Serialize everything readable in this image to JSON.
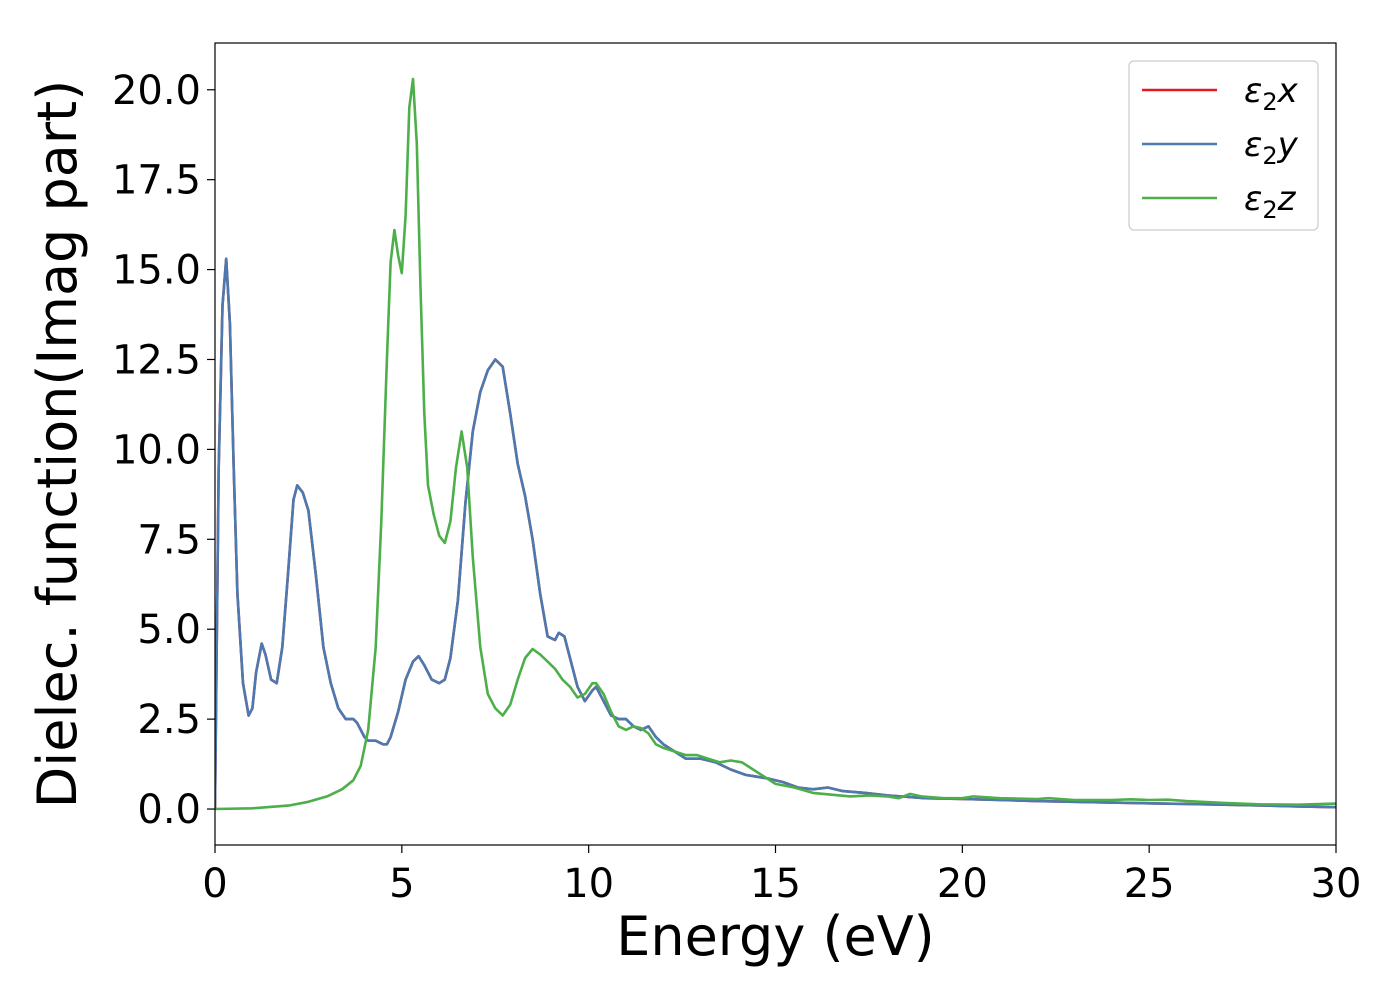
{
  "chart_data": {
    "type": "line",
    "title": "",
    "xlabel": "Energy (eV)",
    "ylabel": "Dielec. function(Imag part)",
    "xlim": [
      0,
      30
    ],
    "ylim": [
      -1.0,
      21.3
    ],
    "xticks": [
      0,
      5,
      10,
      15,
      20,
      25,
      30
    ],
    "yticks": [
      0.0,
      2.5,
      5.0,
      7.5,
      10.0,
      12.5,
      15.0,
      17.5,
      20.0
    ],
    "grid": false,
    "legend_position": "top-right",
    "series": [
      {
        "name": "ε₂x",
        "legend_base": "ε",
        "legend_sub": "2",
        "legend_suffix": "x",
        "color": "#e41a1c",
        "points": [
          [
            0,
            0
          ],
          [
            0.05,
            5
          ],
          [
            0.1,
            9.5
          ],
          [
            0.2,
            14.0
          ],
          [
            0.3,
            15.3
          ],
          [
            0.4,
            13.5
          ],
          [
            0.5,
            9.5
          ],
          [
            0.6,
            6.0
          ],
          [
            0.75,
            3.5
          ],
          [
            0.9,
            2.6
          ],
          [
            1.0,
            2.8
          ],
          [
            1.1,
            3.8
          ],
          [
            1.25,
            4.6
          ],
          [
            1.35,
            4.3
          ],
          [
            1.5,
            3.6
          ],
          [
            1.65,
            3.5
          ],
          [
            1.8,
            4.5
          ],
          [
            1.95,
            6.5
          ],
          [
            2.1,
            8.6
          ],
          [
            2.2,
            9.0
          ],
          [
            2.35,
            8.8
          ],
          [
            2.5,
            8.3
          ],
          [
            2.7,
            6.5
          ],
          [
            2.9,
            4.5
          ],
          [
            3.1,
            3.5
          ],
          [
            3.3,
            2.8
          ],
          [
            3.5,
            2.5
          ],
          [
            3.7,
            2.5
          ],
          [
            3.8,
            2.4
          ],
          [
            4.0,
            2.0
          ],
          [
            4.1,
            1.9
          ],
          [
            4.3,
            1.9
          ],
          [
            4.5,
            1.8
          ],
          [
            4.6,
            1.8
          ],
          [
            4.7,
            2.0
          ],
          [
            4.9,
            2.7
          ],
          [
            5.1,
            3.6
          ],
          [
            5.3,
            4.1
          ],
          [
            5.45,
            4.25
          ],
          [
            5.6,
            4.0
          ],
          [
            5.8,
            3.6
          ],
          [
            6.0,
            3.5
          ],
          [
            6.15,
            3.6
          ],
          [
            6.3,
            4.2
          ],
          [
            6.5,
            5.8
          ],
          [
            6.7,
            8.5
          ],
          [
            6.9,
            10.5
          ],
          [
            7.1,
            11.6
          ],
          [
            7.3,
            12.2
          ],
          [
            7.5,
            12.5
          ],
          [
            7.7,
            12.3
          ],
          [
            7.9,
            11.0
          ],
          [
            8.1,
            9.6
          ],
          [
            8.3,
            8.7
          ],
          [
            8.5,
            7.5
          ],
          [
            8.7,
            6.0
          ],
          [
            8.9,
            4.8
          ],
          [
            9.1,
            4.7
          ],
          [
            9.2,
            4.9
          ],
          [
            9.35,
            4.8
          ],
          [
            9.5,
            4.2
          ],
          [
            9.7,
            3.4
          ],
          [
            9.9,
            3.0
          ],
          [
            10.1,
            3.3
          ],
          [
            10.2,
            3.4
          ],
          [
            10.4,
            3.0
          ],
          [
            10.6,
            2.6
          ],
          [
            10.8,
            2.5
          ],
          [
            11.0,
            2.5
          ],
          [
            11.2,
            2.3
          ],
          [
            11.4,
            2.2
          ],
          [
            11.6,
            2.3
          ],
          [
            11.8,
            2.0
          ],
          [
            12.0,
            1.8
          ],
          [
            12.3,
            1.6
          ],
          [
            12.6,
            1.4
          ],
          [
            13.0,
            1.4
          ],
          [
            13.4,
            1.3
          ],
          [
            13.8,
            1.1
          ],
          [
            14.2,
            0.95
          ],
          [
            14.5,
            0.9
          ],
          [
            14.8,
            0.85
          ],
          [
            15.2,
            0.75
          ],
          [
            15.6,
            0.6
          ],
          [
            16.0,
            0.55
          ],
          [
            16.4,
            0.6
          ],
          [
            16.8,
            0.5
          ],
          [
            17.4,
            0.45
          ],
          [
            18.0,
            0.38
          ],
          [
            19.0,
            0.3
          ],
          [
            20.0,
            0.28
          ],
          [
            21.0,
            0.25
          ],
          [
            22.0,
            0.22
          ],
          [
            23.0,
            0.2
          ],
          [
            24.0,
            0.18
          ],
          [
            25.0,
            0.16
          ],
          [
            26.0,
            0.14
          ],
          [
            27.0,
            0.12
          ],
          [
            28.0,
            0.1
          ],
          [
            29.0,
            0.07
          ],
          [
            30.0,
            0.05
          ]
        ]
      },
      {
        "name": "ε₂y",
        "legend_base": "ε",
        "legend_sub": "2",
        "legend_suffix": "y",
        "color": "#4a7ab0",
        "points": [
          [
            0,
            0
          ],
          [
            0.05,
            5
          ],
          [
            0.1,
            9.5
          ],
          [
            0.2,
            14.0
          ],
          [
            0.3,
            15.3
          ],
          [
            0.4,
            13.5
          ],
          [
            0.5,
            9.5
          ],
          [
            0.6,
            6.0
          ],
          [
            0.75,
            3.5
          ],
          [
            0.9,
            2.6
          ],
          [
            1.0,
            2.8
          ],
          [
            1.1,
            3.8
          ],
          [
            1.25,
            4.6
          ],
          [
            1.35,
            4.3
          ],
          [
            1.5,
            3.6
          ],
          [
            1.65,
            3.5
          ],
          [
            1.8,
            4.5
          ],
          [
            1.95,
            6.5
          ],
          [
            2.1,
            8.6
          ],
          [
            2.2,
            9.0
          ],
          [
            2.35,
            8.8
          ],
          [
            2.5,
            8.3
          ],
          [
            2.7,
            6.5
          ],
          [
            2.9,
            4.5
          ],
          [
            3.1,
            3.5
          ],
          [
            3.3,
            2.8
          ],
          [
            3.5,
            2.5
          ],
          [
            3.7,
            2.5
          ],
          [
            3.8,
            2.4
          ],
          [
            4.0,
            2.0
          ],
          [
            4.1,
            1.9
          ],
          [
            4.3,
            1.9
          ],
          [
            4.5,
            1.8
          ],
          [
            4.6,
            1.8
          ],
          [
            4.7,
            2.0
          ],
          [
            4.9,
            2.7
          ],
          [
            5.1,
            3.6
          ],
          [
            5.3,
            4.1
          ],
          [
            5.45,
            4.25
          ],
          [
            5.6,
            4.0
          ],
          [
            5.8,
            3.6
          ],
          [
            6.0,
            3.5
          ],
          [
            6.15,
            3.6
          ],
          [
            6.3,
            4.2
          ],
          [
            6.5,
            5.8
          ],
          [
            6.7,
            8.5
          ],
          [
            6.9,
            10.5
          ],
          [
            7.1,
            11.6
          ],
          [
            7.3,
            12.2
          ],
          [
            7.5,
            12.5
          ],
          [
            7.7,
            12.3
          ],
          [
            7.9,
            11.0
          ],
          [
            8.1,
            9.6
          ],
          [
            8.3,
            8.7
          ],
          [
            8.5,
            7.5
          ],
          [
            8.7,
            6.0
          ],
          [
            8.9,
            4.8
          ],
          [
            9.1,
            4.7
          ],
          [
            9.2,
            4.9
          ],
          [
            9.35,
            4.8
          ],
          [
            9.5,
            4.2
          ],
          [
            9.7,
            3.4
          ],
          [
            9.9,
            3.0
          ],
          [
            10.1,
            3.3
          ],
          [
            10.2,
            3.4
          ],
          [
            10.4,
            3.0
          ],
          [
            10.6,
            2.6
          ],
          [
            10.8,
            2.5
          ],
          [
            11.0,
            2.5
          ],
          [
            11.2,
            2.3
          ],
          [
            11.4,
            2.2
          ],
          [
            11.6,
            2.3
          ],
          [
            11.8,
            2.0
          ],
          [
            12.0,
            1.8
          ],
          [
            12.3,
            1.6
          ],
          [
            12.6,
            1.4
          ],
          [
            13.0,
            1.4
          ],
          [
            13.4,
            1.3
          ],
          [
            13.8,
            1.1
          ],
          [
            14.2,
            0.95
          ],
          [
            14.5,
            0.9
          ],
          [
            14.8,
            0.85
          ],
          [
            15.2,
            0.75
          ],
          [
            15.6,
            0.6
          ],
          [
            16.0,
            0.55
          ],
          [
            16.4,
            0.6
          ],
          [
            16.8,
            0.5
          ],
          [
            17.4,
            0.45
          ],
          [
            18.0,
            0.38
          ],
          [
            19.0,
            0.3
          ],
          [
            20.0,
            0.28
          ],
          [
            21.0,
            0.25
          ],
          [
            22.0,
            0.22
          ],
          [
            23.0,
            0.2
          ],
          [
            24.0,
            0.18
          ],
          [
            25.0,
            0.16
          ],
          [
            26.0,
            0.14
          ],
          [
            27.0,
            0.12
          ],
          [
            28.0,
            0.1
          ],
          [
            29.0,
            0.07
          ],
          [
            30.0,
            0.05
          ]
        ]
      },
      {
        "name": "ε₂z",
        "legend_base": "ε",
        "legend_sub": "2",
        "legend_suffix": "z",
        "color": "#4daf4a",
        "points": [
          [
            0,
            0
          ],
          [
            1.0,
            0.02
          ],
          [
            2.0,
            0.1
          ],
          [
            2.5,
            0.2
          ],
          [
            3.0,
            0.35
          ],
          [
            3.4,
            0.55
          ],
          [
            3.7,
            0.8
          ],
          [
            3.9,
            1.2
          ],
          [
            4.1,
            2.2
          ],
          [
            4.3,
            4.5
          ],
          [
            4.45,
            8.0
          ],
          [
            4.6,
            12.5
          ],
          [
            4.7,
            15.2
          ],
          [
            4.8,
            16.1
          ],
          [
            4.9,
            15.4
          ],
          [
            5.0,
            14.9
          ],
          [
            5.1,
            16.5
          ],
          [
            5.2,
            19.5
          ],
          [
            5.3,
            20.3
          ],
          [
            5.4,
            18.5
          ],
          [
            5.5,
            14.5
          ],
          [
            5.6,
            11.0
          ],
          [
            5.7,
            9.0
          ],
          [
            5.85,
            8.2
          ],
          [
            6.0,
            7.6
          ],
          [
            6.15,
            7.4
          ],
          [
            6.3,
            8.0
          ],
          [
            6.45,
            9.5
          ],
          [
            6.6,
            10.5
          ],
          [
            6.75,
            9.5
          ],
          [
            6.9,
            7.0
          ],
          [
            7.1,
            4.5
          ],
          [
            7.3,
            3.2
          ],
          [
            7.5,
            2.8
          ],
          [
            7.7,
            2.6
          ],
          [
            7.9,
            2.9
          ],
          [
            8.1,
            3.6
          ],
          [
            8.3,
            4.2
          ],
          [
            8.5,
            4.45
          ],
          [
            8.7,
            4.3
          ],
          [
            8.9,
            4.1
          ],
          [
            9.1,
            3.9
          ],
          [
            9.3,
            3.6
          ],
          [
            9.5,
            3.4
          ],
          [
            9.7,
            3.1
          ],
          [
            9.9,
            3.2
          ],
          [
            10.1,
            3.5
          ],
          [
            10.2,
            3.5
          ],
          [
            10.4,
            3.2
          ],
          [
            10.6,
            2.7
          ],
          [
            10.8,
            2.3
          ],
          [
            11.0,
            2.2
          ],
          [
            11.2,
            2.3
          ],
          [
            11.4,
            2.25
          ],
          [
            11.6,
            2.1
          ],
          [
            11.8,
            1.8
          ],
          [
            12.0,
            1.7
          ],
          [
            12.3,
            1.6
          ],
          [
            12.6,
            1.5
          ],
          [
            12.9,
            1.5
          ],
          [
            13.2,
            1.4
          ],
          [
            13.5,
            1.3
          ],
          [
            13.8,
            1.35
          ],
          [
            14.1,
            1.3
          ],
          [
            14.4,
            1.1
          ],
          [
            14.7,
            0.9
          ],
          [
            15.0,
            0.7
          ],
          [
            15.5,
            0.6
          ],
          [
            16.0,
            0.45
          ],
          [
            16.5,
            0.4
          ],
          [
            17.0,
            0.35
          ],
          [
            17.5,
            0.38
          ],
          [
            18.0,
            0.35
          ],
          [
            18.3,
            0.3
          ],
          [
            18.6,
            0.42
          ],
          [
            18.9,
            0.35
          ],
          [
            19.5,
            0.3
          ],
          [
            20.0,
            0.3
          ],
          [
            20.3,
            0.35
          ],
          [
            21.0,
            0.3
          ],
          [
            22.0,
            0.28
          ],
          [
            22.3,
            0.3
          ],
          [
            23.0,
            0.25
          ],
          [
            24.0,
            0.25
          ],
          [
            24.5,
            0.27
          ],
          [
            25.0,
            0.25
          ],
          [
            25.5,
            0.26
          ],
          [
            26.0,
            0.22
          ],
          [
            27.0,
            0.17
          ],
          [
            28.0,
            0.13
          ],
          [
            29.0,
            0.12
          ],
          [
            30.0,
            0.15
          ]
        ]
      }
    ]
  }
}
